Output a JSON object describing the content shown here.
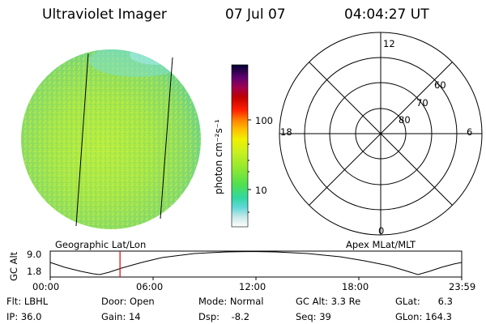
{
  "header": {
    "title": "Ultraviolet Imager",
    "date": "07 Jul 07",
    "time": "04:04:27 UT"
  },
  "colorbar": {
    "unit_label": "photon cm⁻²s⁻¹",
    "ticks": [
      "100",
      "10"
    ]
  },
  "polar_plot": {
    "mlt_labels": [
      "12",
      "18",
      "6",
      "0"
    ],
    "lat_labels": [
      "60",
      "70",
      "80"
    ]
  },
  "panel_labels": {
    "left": "Geographic Lat/Lon",
    "right": "Apex MLat/MLT"
  },
  "altitude_plot": {
    "ylabel": "GC Alt",
    "y_ticks": [
      "9.0",
      "1.8"
    ],
    "x_ticks": [
      "00:00",
      "06:00",
      "12:00",
      "18:00",
      "23:59"
    ],
    "current_time_hours": 4.07,
    "marker_color": "#e00000"
  },
  "info": {
    "filter": "Flt: LBHL",
    "ip": "IP: 36.0",
    "door": "Door: Open",
    "gain": "Gain: 14",
    "mode": "Mode: Normal",
    "dsp": "Dsp:    -8.2",
    "gc_alt": "GC Alt: 3.3 Re",
    "seq": "Seq: 39",
    "glat": "GLat:      6.3",
    "glon": "GLon: 164.3"
  }
}
